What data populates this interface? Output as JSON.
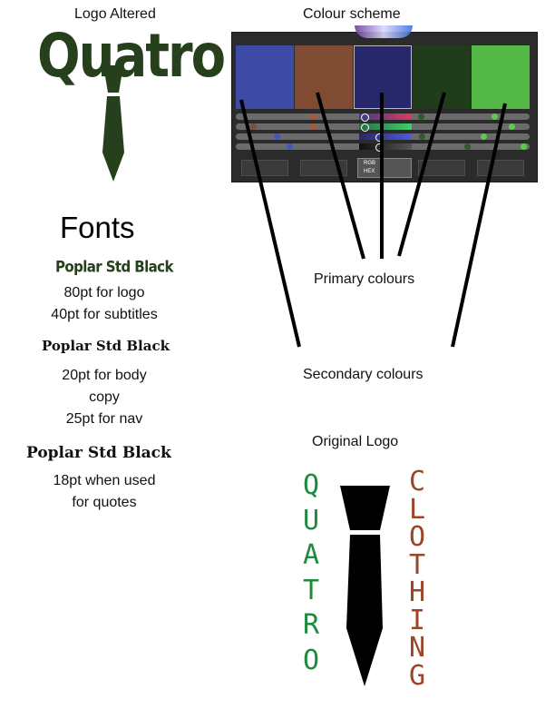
{
  "logo_altered": {
    "label": "Logo Altered",
    "word": "Quatro",
    "color": "#263f1c"
  },
  "colour_scheme": {
    "label": "Colour scheme",
    "swatches": [
      "#3d4aa6",
      "#7f4b33",
      "#26286b",
      "#203c1b",
      "#54b847"
    ],
    "primary_label": "Primary colours",
    "secondary_label": "Secondary colours",
    "picker_tags": {
      "rgb": "RGB",
      "hex": "HEX"
    }
  },
  "fonts": {
    "title": "Fonts",
    "sample_1": "Poplar Std Black",
    "spec_1": [
      "80pt for logo",
      "40pt for subtitles"
    ],
    "sample_2": "Poplar Std Black",
    "spec_2": [
      "20pt for body",
      "copy",
      "25pt for nav"
    ],
    "sample_3": "Poplar Std Black",
    "spec_3": [
      "18pt when used",
      "for quotes"
    ]
  },
  "original_logo": {
    "label": "Original Logo",
    "left_letters": [
      "Q",
      "U",
      "A",
      "T",
      "R",
      "O"
    ],
    "right_letters": [
      "C",
      "L",
      "O",
      "T",
      "H",
      "I",
      "N",
      "G"
    ],
    "left_color": "#1f8a3c",
    "right_color": "#9b4526",
    "tie_color": "#000000"
  }
}
